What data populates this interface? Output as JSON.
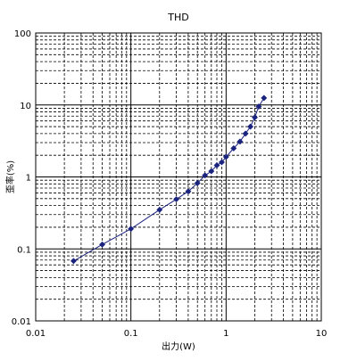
{
  "chart_data": {
    "type": "scatter",
    "title": "THD",
    "xlabel": "出力(W)",
    "ylabel": "歪率(%)",
    "xscale": "log",
    "yscale": "log",
    "xlim": [
      0.01,
      10
    ],
    "ylim": [
      0.01,
      100
    ],
    "xticks": [
      "0.01",
      "0.1",
      "1",
      "10"
    ],
    "yticks": [
      "0.01",
      "0.1",
      "1",
      "10",
      "100"
    ],
    "grid": true,
    "legend": "none",
    "colors": {
      "series": "#1a237e",
      "axis": "#000000",
      "major_grid": "#000000",
      "minor_grid": "#000000"
    },
    "series": [
      {
        "marker": "diamond",
        "x": [
          0.025,
          0.05,
          0.1,
          0.2,
          0.3,
          0.4,
          0.5,
          0.6,
          0.7,
          0.8,
          0.9,
          1.0,
          1.2,
          1.4,
          1.6,
          1.8,
          2.0,
          2.2,
          2.5
        ],
        "y": [
          0.068,
          0.115,
          0.19,
          0.35,
          0.49,
          0.63,
          0.82,
          1.05,
          1.2,
          1.45,
          1.6,
          1.9,
          2.5,
          3.1,
          4.0,
          5.0,
          6.7,
          9.5,
          12.5
        ]
      }
    ]
  }
}
